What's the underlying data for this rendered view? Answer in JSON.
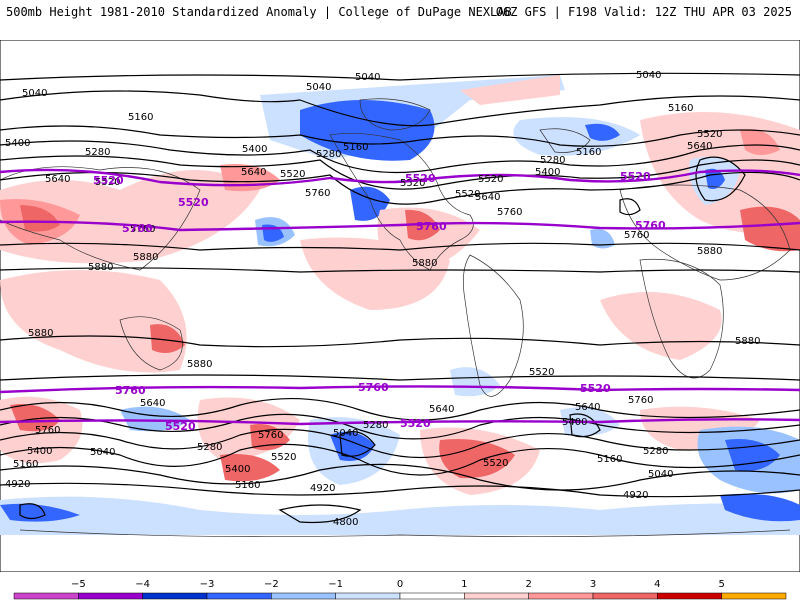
{
  "header": {
    "left_title": "500mb Height 1981-2010 Standardized Anomaly | College of DuPage NEXLAB",
    "right_title": "06Z GFS | F198 Valid: 12Z THU APR 03 2025"
  },
  "contours": {
    "black_labels": [
      "5040",
      "5040",
      "5040",
      "5040",
      "5160",
      "5160",
      "5400",
      "5280",
      "5400",
      "5280",
      "5160",
      "5520",
      "5520",
      "5640",
      "5640",
      "5520",
      "5760",
      "5760",
      "5400",
      "5280",
      "5160",
      "5520",
      "5520",
      "5640",
      "5760",
      "5520",
      "5640",
      "5760",
      "5880",
      "5880",
      "5880",
      "5880",
      "5880",
      "5880",
      "5880",
      "5760",
      "5640",
      "5640",
      "5520",
      "5400",
      "5280",
      "5160",
      "5040",
      "4920",
      "5280",
      "5040",
      "5160",
      "5400",
      "5520",
      "5760",
      "5400",
      "5280",
      "5160",
      "5040",
      "4920",
      "4920",
      "4800",
      "5640",
      "5760",
      "5520"
    ],
    "purple_labels": [
      "5520",
      "5520",
      "5520",
      "5520",
      "5760",
      "5760",
      "5760",
      "5760",
      "5760",
      "5520",
      "5520",
      "5520"
    ],
    "colors": {
      "purple": "#9900cc",
      "black": "#000000",
      "coast": "#333333"
    }
  },
  "legend": {
    "ticks": [
      "−5",
      "−4",
      "−3",
      "−2",
      "−1",
      "0",
      "1",
      "2",
      "3",
      "4",
      "5"
    ],
    "colors": [
      "#cc44cc",
      "#9900cc",
      "#0033cc",
      "#3366ff",
      "#99c2ff",
      "#cce0ff",
      "#ffffff",
      "#ffd0d0",
      "#ff9999",
      "#ee6666",
      "#cc0000",
      "#ffaa00"
    ]
  }
}
